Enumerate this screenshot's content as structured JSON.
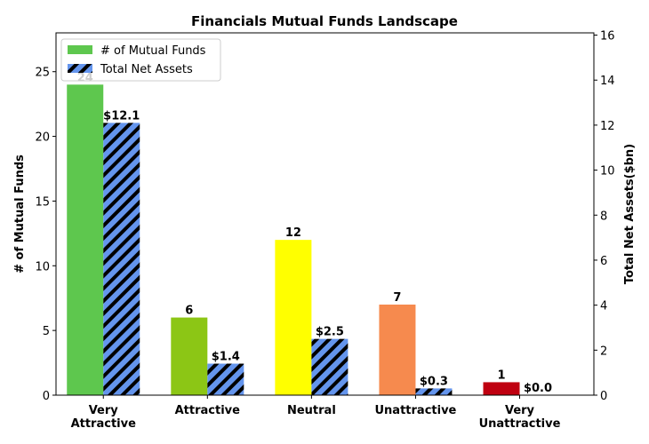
{
  "chart_data": {
    "type": "bar",
    "title": "Financials Mutual Funds Landscape",
    "categories": [
      "Very\nAttractive",
      "Attractive",
      "Neutral",
      "Unattractive",
      "Very\nUnattractive"
    ],
    "series": [
      {
        "name": "# of Mutual Funds",
        "axis": "left",
        "values": [
          24,
          6,
          12,
          7,
          1
        ],
        "labels": [
          "24",
          "6",
          "12",
          "7",
          "1"
        ],
        "colors": [
          "#5ec74e",
          "#8cc615",
          "#ffff00",
          "#f68a4e",
          "#bf0010"
        ]
      },
      {
        "name": "Total Net Assets",
        "axis": "right",
        "values": [
          12.1,
          1.4,
          2.5,
          0.3,
          0.0
        ],
        "labels": [
          "$12.1",
          "$1.4",
          "$2.5",
          "$0.3",
          "$0.0"
        ],
        "color": "#6495ed",
        "hatch": "diagonal"
      }
    ],
    "ylabel": "# of Mutual Funds",
    "ylabel_right": "Total Net Assets($bn)",
    "ylim": [
      0,
      28
    ],
    "ylim_right": [
      0,
      16.1
    ],
    "yticks": [
      "0",
      "5",
      "10",
      "15",
      "20",
      "25"
    ],
    "yticks_right": [
      "0",
      "2",
      "4",
      "6",
      "8",
      "10",
      "12",
      "14",
      "16"
    ],
    "legend": "top-left",
    "grid": false
  }
}
